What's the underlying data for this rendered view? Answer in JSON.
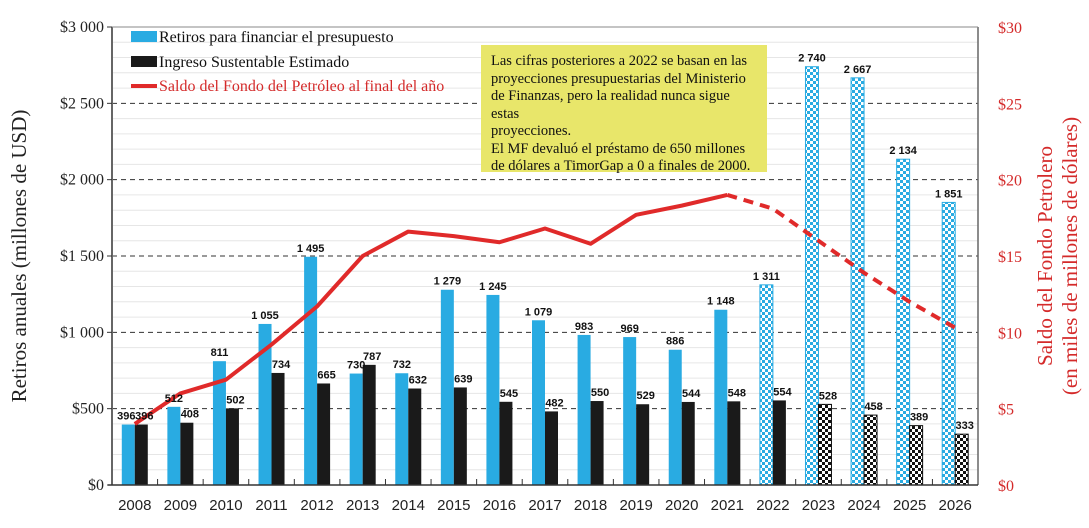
{
  "chart_data": {
    "type": "bar",
    "title": "",
    "categories": [
      "2008",
      "2009",
      "2010",
      "2011",
      "2012",
      "2013",
      "2014",
      "2015",
      "2016",
      "2017",
      "2018",
      "2019",
      "2020",
      "2021",
      "2022",
      "2023",
      "2024",
      "2025",
      "2026"
    ],
    "projection_start_index": 14,
    "series": [
      {
        "name": "Retiros para financiar el presupuesto",
        "axis": "left",
        "kind": "bar",
        "color": "#29abe2",
        "values": [
          396,
          512,
          811,
          1055,
          1495,
          730,
          732,
          1279,
          1245,
          1079,
          983,
          969,
          886,
          1148,
          1311,
          2740,
          2667,
          2134,
          1851
        ],
        "labels": [
          "396",
          "512",
          "811",
          "1 055",
          "1 495",
          "730",
          "732",
          "1 279",
          "1 245",
          "1 079",
          "983",
          "969",
          "886",
          "1 148",
          "1 311",
          "2 740",
          "2 667",
          "2 134",
          "1 851"
        ],
        "patterned_from_index": 14
      },
      {
        "name": "Ingreso Sustentable Estimado",
        "axis": "left",
        "kind": "bar",
        "color": "#1a1a1a",
        "values": [
          396,
          408,
          502,
          734,
          665,
          787,
          632,
          639,
          545,
          482,
          550,
          529,
          544,
          548,
          554,
          528,
          458,
          389,
          333
        ],
        "labels": [
          "396",
          "408",
          "502",
          "734",
          "665",
          "787",
          "632",
          "639",
          "545",
          "482",
          "550",
          "529",
          "544",
          "548",
          "554",
          "528",
          "458",
          "389",
          "333"
        ],
        "patterned_from_index": 15
      },
      {
        "name": "Saldo del Fondo del Petróleo al final del año",
        "axis": "right",
        "kind": "line",
        "color": "#e02a2a",
        "values": [
          4.0,
          6.0,
          6.9,
          9.2,
          11.7,
          15.0,
          16.6,
          16.3,
          15.9,
          16.8,
          15.8,
          17.7,
          18.3,
          19.0,
          18.1,
          16.0,
          13.9,
          12.0,
          10.3
        ],
        "dashed_from_index": 13
      }
    ],
    "left_axis": {
      "label": "Retiros anuales (millones de USD)",
      "ylim": [
        0,
        3000
      ],
      "ticks": [
        0,
        500,
        1000,
        1500,
        2000,
        2500,
        3000
      ],
      "tick_labels": [
        "$0",
        "$500",
        "$1 000",
        "$1 500",
        "$2 000",
        "$2 500",
        "$3 000"
      ]
    },
    "right_axis": {
      "label_line1": "Saldo del Fondo Petrolero",
      "label_line2": "(en miles de millones de dólares)",
      "ylim": [
        0,
        30
      ],
      "ticks": [
        0,
        5,
        10,
        15,
        20,
        25,
        30
      ],
      "tick_labels": [
        "$0",
        "$5",
        "$10",
        "$15",
        "$20",
        "$25",
        "$30"
      ]
    },
    "grid": true,
    "legend_position": "top-left",
    "annotation": {
      "lines": [
        "Las cifras posteriores a 2022 se basan en las",
        "proyecciones presupuestarias del Ministerio",
        "de Finanzas, pero la realidad nunca sigue estas",
        "proyecciones.",
        "El MF devaluó el préstamo de 650 millones",
        "de dólares a TimorGap a 0 a finales de 2000."
      ]
    }
  }
}
